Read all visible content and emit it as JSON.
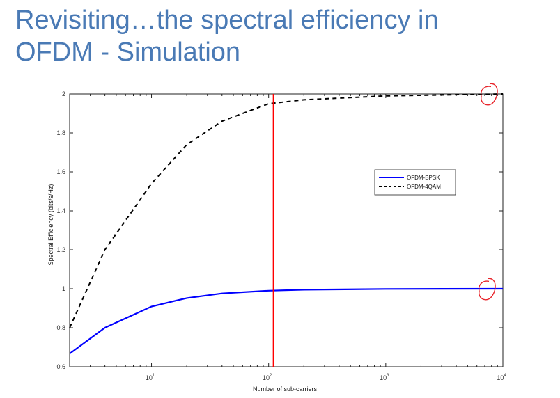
{
  "slide": {
    "title_line1": "Revisiting…the spectral efficiency in",
    "title_line2": "OFDM - Simulation"
  },
  "chart_data": {
    "type": "line",
    "xlabel": "Number of sub-carriers",
    "ylabel": "Spectral Efficiency (bits/s/Hz)",
    "xscale": "log",
    "xlim": [
      2,
      10000
    ],
    "ylim": [
      0.6,
      2
    ],
    "yticks": [
      0.6,
      0.8,
      1,
      1.2,
      1.4,
      1.6,
      1.8,
      2
    ],
    "ytick_labels": [
      "0.6",
      "0.8",
      "1",
      "1.2",
      "1.4",
      "1.6",
      "1.8",
      "2"
    ],
    "xticks": [
      10,
      100,
      1000,
      10000
    ],
    "xtick_labels": [
      {
        "base": "10",
        "exp": "1"
      },
      {
        "base": "10",
        "exp": "2"
      },
      {
        "base": "10",
        "exp": "3"
      },
      {
        "base": "10",
        "exp": "4"
      }
    ],
    "grid": false,
    "legend_position": "right",
    "series": [
      {
        "name": "OFDM-BPSK",
        "color": "#0000ff",
        "style": "solid",
        "x": [
          2,
          4,
          10,
          20,
          40,
          100,
          200,
          1000,
          10000
        ],
        "y": [
          0.667,
          0.8,
          0.909,
          0.952,
          0.976,
          0.99,
          0.995,
          0.999,
          1.0
        ]
      },
      {
        "name": "OFDM-4QAM",
        "color": "#000000",
        "style": "dashed",
        "x": [
          2,
          4,
          10,
          20,
          40,
          100,
          200,
          1000,
          10000
        ],
        "y": [
          0.8,
          1.2,
          1.54,
          1.74,
          1.86,
          1.95,
          1.97,
          1.99,
          2.0
        ]
      }
    ],
    "annotations": {
      "vertical_line": {
        "x": 110,
        "color": "#ff0000"
      },
      "circle_marks": [
        {
          "x": 7500,
          "y": 1.995,
          "color": "#e8242a"
        },
        {
          "x": 7200,
          "y": 0.995,
          "color": "#e8242a"
        }
      ]
    }
  }
}
